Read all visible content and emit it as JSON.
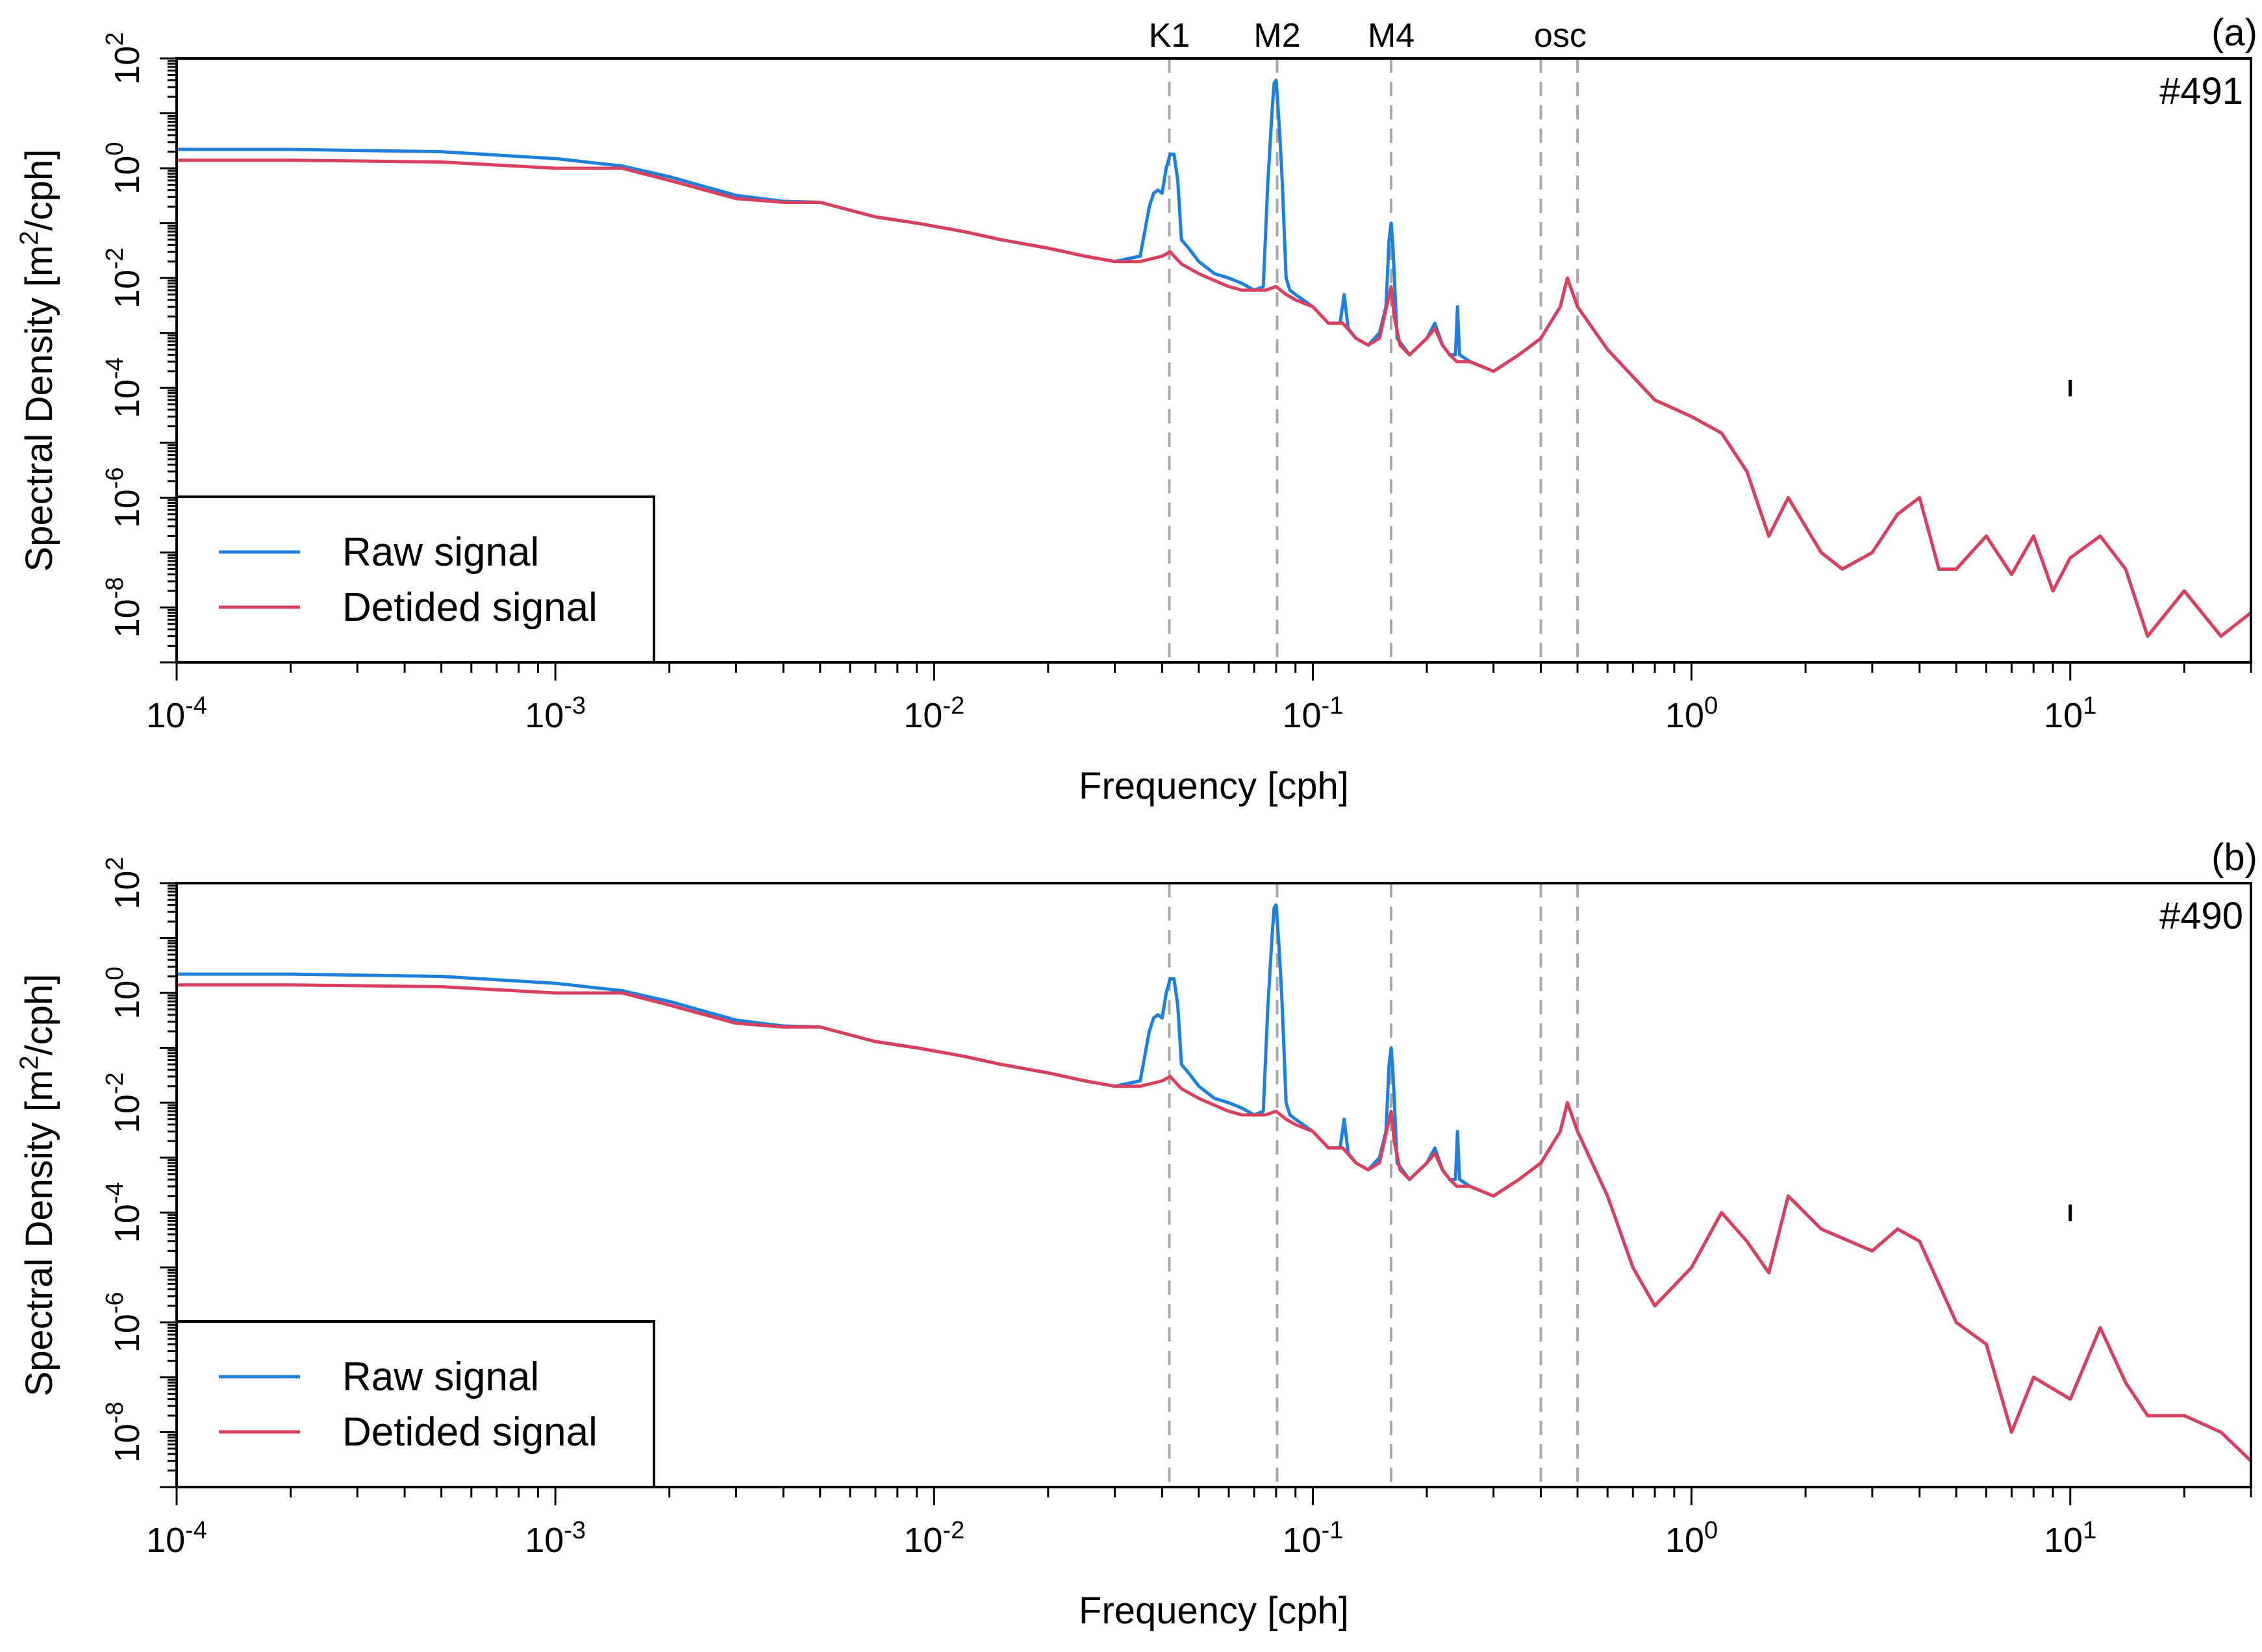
{
  "colors": {
    "raw": "#1e7fdc",
    "detided": "#d9405e",
    "reference_line": "#a8a8a8",
    "axis": "#000000"
  },
  "chart_data": [
    {
      "type": "line",
      "panel": "(a)",
      "station": "#491",
      "xlabel": "Frequency [cph]",
      "ylabel": "Spectral Density [m²/cph]",
      "ylabel_main": "Spectral Density [m",
      "ylabel_sup": "2",
      "ylabel_tail": "/cph]",
      "xscale": "log",
      "yscale": "log",
      "xlim": [
        0.0001,
        30
      ],
      "ylim": [
        1e-09,
        100
      ],
      "xticks": [
        {
          "base": "10",
          "exp": "-4",
          "value": 0.0001
        },
        {
          "base": "10",
          "exp": "-3",
          "value": 0.001
        },
        {
          "base": "10",
          "exp": "-2",
          "value": 0.01
        },
        {
          "base": "10",
          "exp": "-1",
          "value": 0.1
        },
        {
          "base": "10",
          "exp": "0",
          "value": 1
        },
        {
          "base": "10",
          "exp": "1",
          "value": 10
        }
      ],
      "yticks": [
        {
          "base": "10",
          "exp": "2",
          "value": 100
        },
        {
          "base": "10",
          "exp": "0",
          "value": 1
        },
        {
          "base": "10",
          "exp": "-2",
          "value": 0.01
        },
        {
          "base": "10",
          "exp": "-4",
          "value": 0.0001
        },
        {
          "base": "10",
          "exp": "-6",
          "value": 1e-06
        },
        {
          "base": "10",
          "exp": "-8",
          "value": 1e-08
        }
      ],
      "reference_lines": [
        {
          "label": "K1",
          "x": 0.0418
        },
        {
          "label": "M2",
          "x": 0.0805
        },
        {
          "label": "M4",
          "x": 0.161
        },
        {
          "label": "",
          "x": 0.4
        },
        {
          "label": "",
          "x": 0.5
        }
      ],
      "band_label": "osc",
      "band_label_x": 0.45,
      "error_bar": {
        "x": 10,
        "y_low": 7e-05,
        "y_high": 0.00014
      },
      "legend": {
        "position": "bottom-left",
        "entries": [
          "Raw signal",
          "Detided signal"
        ]
      },
      "series": [
        {
          "name": "Raw signal",
          "color_key": "raw",
          "x": [
            0.0001,
            0.0002,
            0.0005,
            0.001,
            0.0015,
            0.002,
            0.003,
            0.004,
            0.005,
            0.007,
            0.009,
            0.012,
            0.015,
            0.02,
            0.025,
            0.03,
            0.035,
            0.037,
            0.038,
            0.039,
            0.04,
            0.041,
            0.042,
            0.043,
            0.044,
            0.045,
            0.047,
            0.05,
            0.055,
            0.06,
            0.065,
            0.07,
            0.074,
            0.076,
            0.078,
            0.079,
            0.08,
            0.081,
            0.082,
            0.083,
            0.085,
            0.087,
            0.09,
            0.1,
            0.11,
            0.118,
            0.121,
            0.124,
            0.13,
            0.14,
            0.15,
            0.156,
            0.159,
            0.161,
            0.163,
            0.167,
            0.18,
            0.2,
            0.21,
            0.22,
            0.23,
            0.238,
            0.241,
            0.244,
            0.26,
            0.3,
            0.35,
            0.4,
            0.45,
            0.47,
            0.5,
            0.6,
            0.8,
            1.0,
            1.2,
            1.4,
            1.6,
            1.8,
            2.2,
            2.5,
            3.0,
            3.5,
            4.0,
            4.5,
            5.0,
            6.0,
            7.0,
            8.0,
            9.0,
            10.0,
            12.0,
            14.0,
            16.0,
            20.0,
            25.0,
            30.0
          ],
          "y": [
            2.2,
            2.2,
            2.0,
            1.5,
            1.1,
            0.7,
            0.32,
            0.25,
            0.24,
            0.13,
            0.1,
            0.07,
            0.05,
            0.035,
            0.025,
            0.02,
            0.025,
            0.2,
            0.35,
            0.4,
            0.35,
            1.0,
            1.8,
            1.8,
            0.6,
            0.05,
            0.035,
            0.02,
            0.012,
            0.01,
            0.008,
            0.006,
            0.007,
            0.5,
            10,
            35,
            40,
            12,
            3,
            0.6,
            0.01,
            0.006,
            0.005,
            0.003,
            0.0015,
            0.0015,
            0.005,
            0.0012,
            0.0008,
            0.0006,
            0.001,
            0.003,
            0.05,
            0.1,
            0.03,
            0.0008,
            0.0004,
            0.0008,
            0.0015,
            0.0006,
            0.0004,
            0.0004,
            0.003,
            0.0004,
            0.0003,
            0.0002,
            0.0004,
            0.0008,
            0.003,
            0.01,
            0.003,
            0.0005,
            6e-05,
            3e-05,
            1.5e-05,
            3e-06,
            2e-07,
            1e-06,
            1e-07,
            5e-08,
            1e-07,
            5e-07,
            1e-06,
            5e-08,
            5e-08,
            2e-07,
            4e-08,
            2e-07,
            2e-08,
            8e-08,
            2e-07,
            5e-08,
            3e-09,
            2e-08,
            3e-09,
            8e-09
          ]
        },
        {
          "name": "Detided signal",
          "color_key": "detided",
          "x": [
            0.0001,
            0.0002,
            0.0005,
            0.001,
            0.0015,
            0.002,
            0.003,
            0.004,
            0.005,
            0.007,
            0.009,
            0.012,
            0.015,
            0.02,
            0.025,
            0.03,
            0.035,
            0.04,
            0.042,
            0.045,
            0.05,
            0.055,
            0.06,
            0.065,
            0.07,
            0.075,
            0.08,
            0.085,
            0.09,
            0.1,
            0.11,
            0.12,
            0.13,
            0.14,
            0.15,
            0.158,
            0.161,
            0.164,
            0.17,
            0.18,
            0.2,
            0.21,
            0.22,
            0.23,
            0.24,
            0.26,
            0.3,
            0.35,
            0.4,
            0.45,
            0.47,
            0.5,
            0.6,
            0.8,
            1.0,
            1.2,
            1.4,
            1.6,
            1.8,
            2.2,
            2.5,
            3.0,
            3.5,
            4.0,
            4.5,
            5.0,
            6.0,
            7.0,
            8.0,
            9.0,
            10.0,
            12.0,
            14.0,
            16.0,
            20.0,
            25.0,
            30.0
          ],
          "y": [
            1.4,
            1.4,
            1.3,
            1.0,
            1.0,
            0.6,
            0.28,
            0.24,
            0.24,
            0.13,
            0.1,
            0.07,
            0.05,
            0.035,
            0.025,
            0.02,
            0.02,
            0.025,
            0.03,
            0.018,
            0.012,
            0.009,
            0.007,
            0.006,
            0.006,
            0.006,
            0.007,
            0.005,
            0.004,
            0.003,
            0.0015,
            0.0015,
            0.0008,
            0.0006,
            0.0008,
            0.004,
            0.007,
            0.002,
            0.0006,
            0.0004,
            0.0008,
            0.0012,
            0.0006,
            0.0004,
            0.0003,
            0.0003,
            0.0002,
            0.0004,
            0.0008,
            0.003,
            0.01,
            0.003,
            0.0005,
            6e-05,
            3e-05,
            1.5e-05,
            3e-06,
            2e-07,
            1e-06,
            1e-07,
            5e-08,
            1e-07,
            5e-07,
            1e-06,
            5e-08,
            5e-08,
            2e-07,
            4e-08,
            2e-07,
            2e-08,
            8e-08,
            2e-07,
            5e-08,
            3e-09,
            2e-08,
            3e-09,
            8e-09
          ]
        }
      ]
    },
    {
      "type": "line",
      "panel": "(b)",
      "station": "#490",
      "xlabel": "Frequency [cph]",
      "ylabel": "Spectral Density [m²/cph]",
      "ylabel_main": "Spectral Density [m",
      "ylabel_sup": "2",
      "ylabel_tail": "/cph]",
      "xscale": "log",
      "yscale": "log",
      "xlim": [
        0.0001,
        30
      ],
      "ylim": [
        1e-09,
        100
      ],
      "xticks": [
        {
          "base": "10",
          "exp": "-4",
          "value": 0.0001
        },
        {
          "base": "10",
          "exp": "-3",
          "value": 0.001
        },
        {
          "base": "10",
          "exp": "-2",
          "value": 0.01
        },
        {
          "base": "10",
          "exp": "-1",
          "value": 0.1
        },
        {
          "base": "10",
          "exp": "0",
          "value": 1
        },
        {
          "base": "10",
          "exp": "1",
          "value": 10
        }
      ],
      "yticks": [
        {
          "base": "10",
          "exp": "2",
          "value": 100
        },
        {
          "base": "10",
          "exp": "0",
          "value": 1
        },
        {
          "base": "10",
          "exp": "-2",
          "value": 0.01
        },
        {
          "base": "10",
          "exp": "-4",
          "value": 0.0001
        },
        {
          "base": "10",
          "exp": "-6",
          "value": 1e-06
        },
        {
          "base": "10",
          "exp": "-8",
          "value": 1e-08
        }
      ],
      "reference_lines": [
        {
          "label": "",
          "x": 0.0418
        },
        {
          "label": "",
          "x": 0.0805
        },
        {
          "label": "",
          "x": 0.161
        },
        {
          "label": "",
          "x": 0.4
        },
        {
          "label": "",
          "x": 0.5
        }
      ],
      "band_label": "",
      "band_label_x": 0.45,
      "error_bar": {
        "x": 10,
        "y_low": 7e-05,
        "y_high": 0.00014
      },
      "legend": {
        "position": "bottom-left",
        "entries": [
          "Raw signal",
          "Detided signal"
        ]
      },
      "series": [
        {
          "name": "Raw signal",
          "color_key": "raw",
          "x": [
            0.0001,
            0.0002,
            0.0005,
            0.001,
            0.0015,
            0.002,
            0.003,
            0.004,
            0.005,
            0.007,
            0.009,
            0.012,
            0.015,
            0.02,
            0.025,
            0.03,
            0.035,
            0.037,
            0.038,
            0.039,
            0.04,
            0.041,
            0.042,
            0.043,
            0.044,
            0.045,
            0.047,
            0.05,
            0.055,
            0.06,
            0.065,
            0.07,
            0.074,
            0.076,
            0.078,
            0.079,
            0.08,
            0.081,
            0.082,
            0.083,
            0.085,
            0.087,
            0.09,
            0.1,
            0.11,
            0.118,
            0.121,
            0.124,
            0.13,
            0.14,
            0.15,
            0.156,
            0.159,
            0.161,
            0.163,
            0.167,
            0.18,
            0.2,
            0.21,
            0.22,
            0.23,
            0.238,
            0.241,
            0.244,
            0.26,
            0.3,
            0.35,
            0.4,
            0.45,
            0.47,
            0.5,
            0.6,
            0.7,
            0.8,
            1.0,
            1.2,
            1.4,
            1.6,
            1.8,
            2.2,
            3.0,
            3.5,
            4.0,
            5.0,
            6.0,
            7.0,
            8.0,
            10.0,
            12.0,
            14.0,
            16.0,
            20.0,
            25.0,
            30.0
          ],
          "y": [
            2.2,
            2.2,
            2.0,
            1.5,
            1.1,
            0.7,
            0.32,
            0.25,
            0.24,
            0.13,
            0.1,
            0.07,
            0.05,
            0.035,
            0.025,
            0.02,
            0.025,
            0.2,
            0.35,
            0.4,
            0.35,
            1.0,
            1.8,
            1.8,
            0.6,
            0.05,
            0.035,
            0.02,
            0.012,
            0.01,
            0.008,
            0.006,
            0.007,
            0.5,
            10,
            35,
            40,
            12,
            3,
            0.6,
            0.01,
            0.006,
            0.005,
            0.003,
            0.0015,
            0.0015,
            0.005,
            0.0012,
            0.0008,
            0.0006,
            0.001,
            0.003,
            0.05,
            0.1,
            0.03,
            0.0008,
            0.0004,
            0.0008,
            0.0015,
            0.0006,
            0.0004,
            0.0004,
            0.003,
            0.0004,
            0.0003,
            0.0002,
            0.0004,
            0.0008,
            0.003,
            0.01,
            0.003,
            0.0002,
            1e-05,
            2e-06,
            1e-05,
            0.0001,
            3e-05,
            8e-06,
            0.0002,
            5e-05,
            2e-05,
            5e-05,
            3e-05,
            1e-06,
            4e-07,
            1e-08,
            1e-07,
            4e-08,
            8e-07,
            8e-08,
            2e-08,
            2e-08,
            1e-08,
            3e-09
          ]
        },
        {
          "name": "Detided signal",
          "color_key": "detided",
          "x": [
            0.0001,
            0.0002,
            0.0005,
            0.001,
            0.0015,
            0.002,
            0.003,
            0.004,
            0.005,
            0.007,
            0.009,
            0.012,
            0.015,
            0.02,
            0.025,
            0.03,
            0.035,
            0.04,
            0.042,
            0.045,
            0.05,
            0.055,
            0.06,
            0.065,
            0.07,
            0.075,
            0.08,
            0.085,
            0.09,
            0.1,
            0.11,
            0.12,
            0.13,
            0.14,
            0.15,
            0.158,
            0.161,
            0.164,
            0.17,
            0.18,
            0.2,
            0.21,
            0.22,
            0.23,
            0.24,
            0.26,
            0.3,
            0.35,
            0.4,
            0.45,
            0.47,
            0.5,
            0.6,
            0.7,
            0.8,
            1.0,
            1.2,
            1.4,
            1.6,
            1.8,
            2.2,
            3.0,
            3.5,
            4.0,
            5.0,
            6.0,
            7.0,
            8.0,
            10.0,
            12.0,
            14.0,
            16.0,
            20.0,
            25.0,
            30.0
          ],
          "y": [
            1.4,
            1.4,
            1.3,
            1.0,
            1.0,
            0.6,
            0.28,
            0.24,
            0.24,
            0.13,
            0.1,
            0.07,
            0.05,
            0.035,
            0.025,
            0.02,
            0.02,
            0.025,
            0.03,
            0.018,
            0.012,
            0.009,
            0.007,
            0.006,
            0.006,
            0.006,
            0.007,
            0.005,
            0.004,
            0.003,
            0.0015,
            0.0015,
            0.0008,
            0.0006,
            0.0008,
            0.004,
            0.007,
            0.002,
            0.0006,
            0.0004,
            0.0008,
            0.0012,
            0.0006,
            0.0004,
            0.0003,
            0.0003,
            0.0002,
            0.0004,
            0.0008,
            0.003,
            0.01,
            0.003,
            0.0002,
            1e-05,
            2e-06,
            1e-05,
            0.0001,
            3e-05,
            8e-06,
            0.0002,
            5e-05,
            2e-05,
            5e-05,
            3e-05,
            1e-06,
            4e-07,
            1e-08,
            1e-07,
            4e-08,
            8e-07,
            8e-08,
            2e-08,
            2e-08,
            1e-08,
            3e-09
          ]
        }
      ]
    }
  ]
}
